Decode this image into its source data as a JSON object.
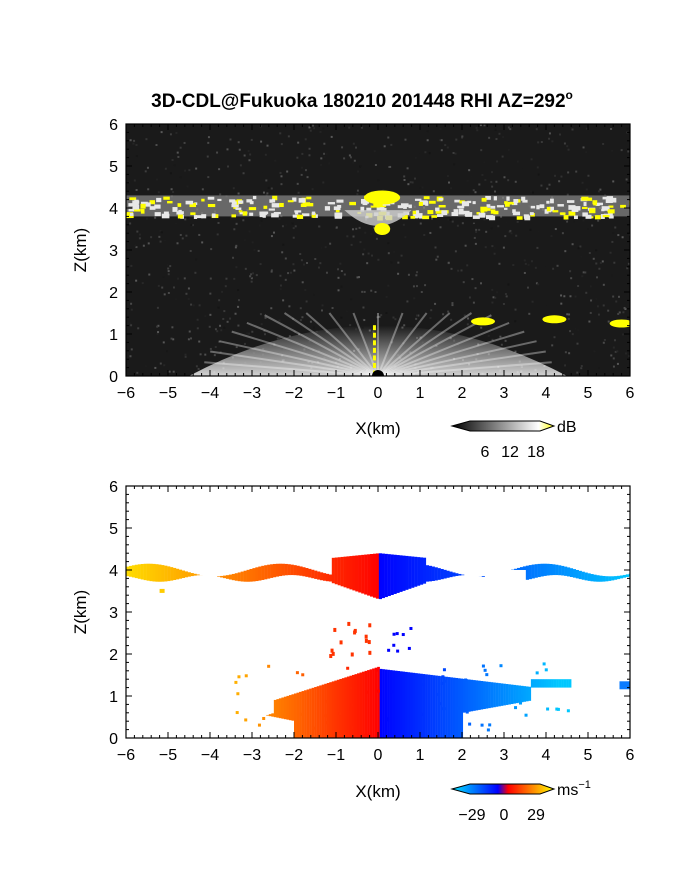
{
  "title": "3D-CDL@Fukuoka 180210 201448 RHI AZ=292",
  "title_superscript": "o",
  "chart_data": [
    {
      "type": "heatmap",
      "quantity": "reflectivity",
      "xlabel": "X(km)",
      "ylabel": "Z(km)",
      "xlim": [
        -6,
        6
      ],
      "ylim": [
        0,
        6
      ],
      "xticks": [
        "-6",
        "-5",
        "-4",
        "-3",
        "-2",
        "-1",
        "0",
        "1",
        "2",
        "3",
        "4",
        "5",
        "6"
      ],
      "yticks": [
        "0",
        "1",
        "2",
        "3",
        "4",
        "5",
        "6"
      ],
      "colorbar": {
        "unit": "dB",
        "ticks": [
          "6",
          "12",
          "18"
        ],
        "range": [
          0,
          20
        ],
        "colors": [
          "#000000",
          "#ffffff",
          "#ffff00"
        ]
      },
      "features": {
        "cloud_layer": {
          "z_base_km": 3.8,
          "z_top_km": 4.3,
          "x_range_km": [
            -6,
            6
          ],
          "peak_dB": 18
        },
        "near_ground_fan": {
          "z_top_km": 1.5,
          "x_range_km": [
            -4.5,
            4.5
          ]
        },
        "low_echoes": [
          {
            "x_km": 2.5,
            "z_km": 1.3
          },
          {
            "x_km": 4.2,
            "z_km": 1.35
          },
          {
            "x_km": 5.8,
            "z_km": 1.25
          }
        ]
      }
    },
    {
      "type": "heatmap",
      "quantity": "doppler_velocity",
      "xlabel": "X(km)",
      "ylabel": "Z(km)",
      "xlim": [
        -6,
        6
      ],
      "ylim": [
        0,
        6
      ],
      "xticks": [
        "-6",
        "-5",
        "-4",
        "-3",
        "-2",
        "-1",
        "0",
        "1",
        "2",
        "3",
        "4",
        "5",
        "6"
      ],
      "yticks": [
        "0",
        "1",
        "2",
        "3",
        "4",
        "5",
        "6"
      ],
      "colorbar": {
        "unit": "ms",
        "unit_superscript": "−1",
        "ticks": [
          "−29",
          "0",
          "29"
        ],
        "range": [
          -29,
          29
        ],
        "colors": [
          "#00e5ff",
          "#0000ff",
          "#ff0000",
          "#ffff00"
        ]
      },
      "features": {
        "upper_layer": {
          "z_base_km": 3.7,
          "z_top_km": 4.4,
          "x_range_km": [
            -6,
            6
          ]
        },
        "lower_layer": {
          "z_base_km": 0.0,
          "z_top_km": 1.7,
          "x_range_km": [
            -3.5,
            6
          ]
        }
      }
    }
  ]
}
